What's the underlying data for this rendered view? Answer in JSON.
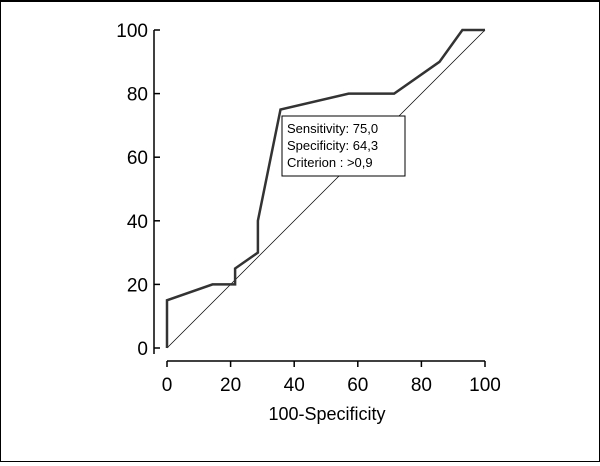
{
  "chart_data": {
    "type": "line",
    "title": "",
    "xlabel": "100-Specificity",
    "ylabel": "",
    "xlim": [
      0,
      100
    ],
    "ylim": [
      0,
      100
    ],
    "x_ticks": [
      "0",
      "20",
      "40",
      "60",
      "80",
      "100"
    ],
    "y_ticks": [
      "0",
      "20",
      "40",
      "60",
      "80",
      "100"
    ],
    "grid": false,
    "series": [
      {
        "x": [
          0,
          0,
          14.3,
          21.4,
          21.4,
          21.4,
          28.6,
          28.6,
          35.7,
          57.1,
          71.4,
          85.7,
          92.9,
          100
        ],
        "y": [
          0,
          15,
          20,
          20,
          20,
          25,
          30,
          40,
          75,
          80,
          80,
          90,
          100,
          100
        ]
      },
      {
        "x": [
          0,
          100
        ],
        "y": [
          0,
          100
        ]
      }
    ],
    "annotation": {
      "lines": [
        "Sensitivity: 75,0",
        "Specificity: 64,3",
        "Criterion : >0,9"
      ]
    },
    "colors": {
      "roc_line": "#333333",
      "diagonal": "#000000",
      "axis": "#000000"
    }
  }
}
